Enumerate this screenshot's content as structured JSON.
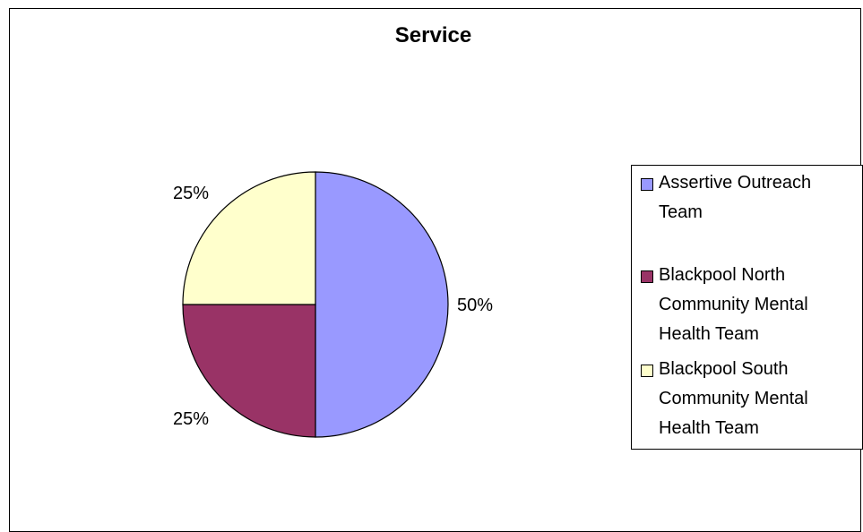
{
  "chart_data": {
    "type": "pie",
    "title": "Service",
    "categories": [
      "Assertive Outreach Team",
      "Blackpool North Community Mental Health Team",
      "Blackpool South Community Mental Health Team"
    ],
    "values": [
      50,
      25,
      25
    ],
    "labels": [
      "50%",
      "25%",
      "25%"
    ],
    "colors": [
      "#9999ff",
      "#993366",
      "#ffffcc"
    ],
    "legend_position": "right"
  }
}
